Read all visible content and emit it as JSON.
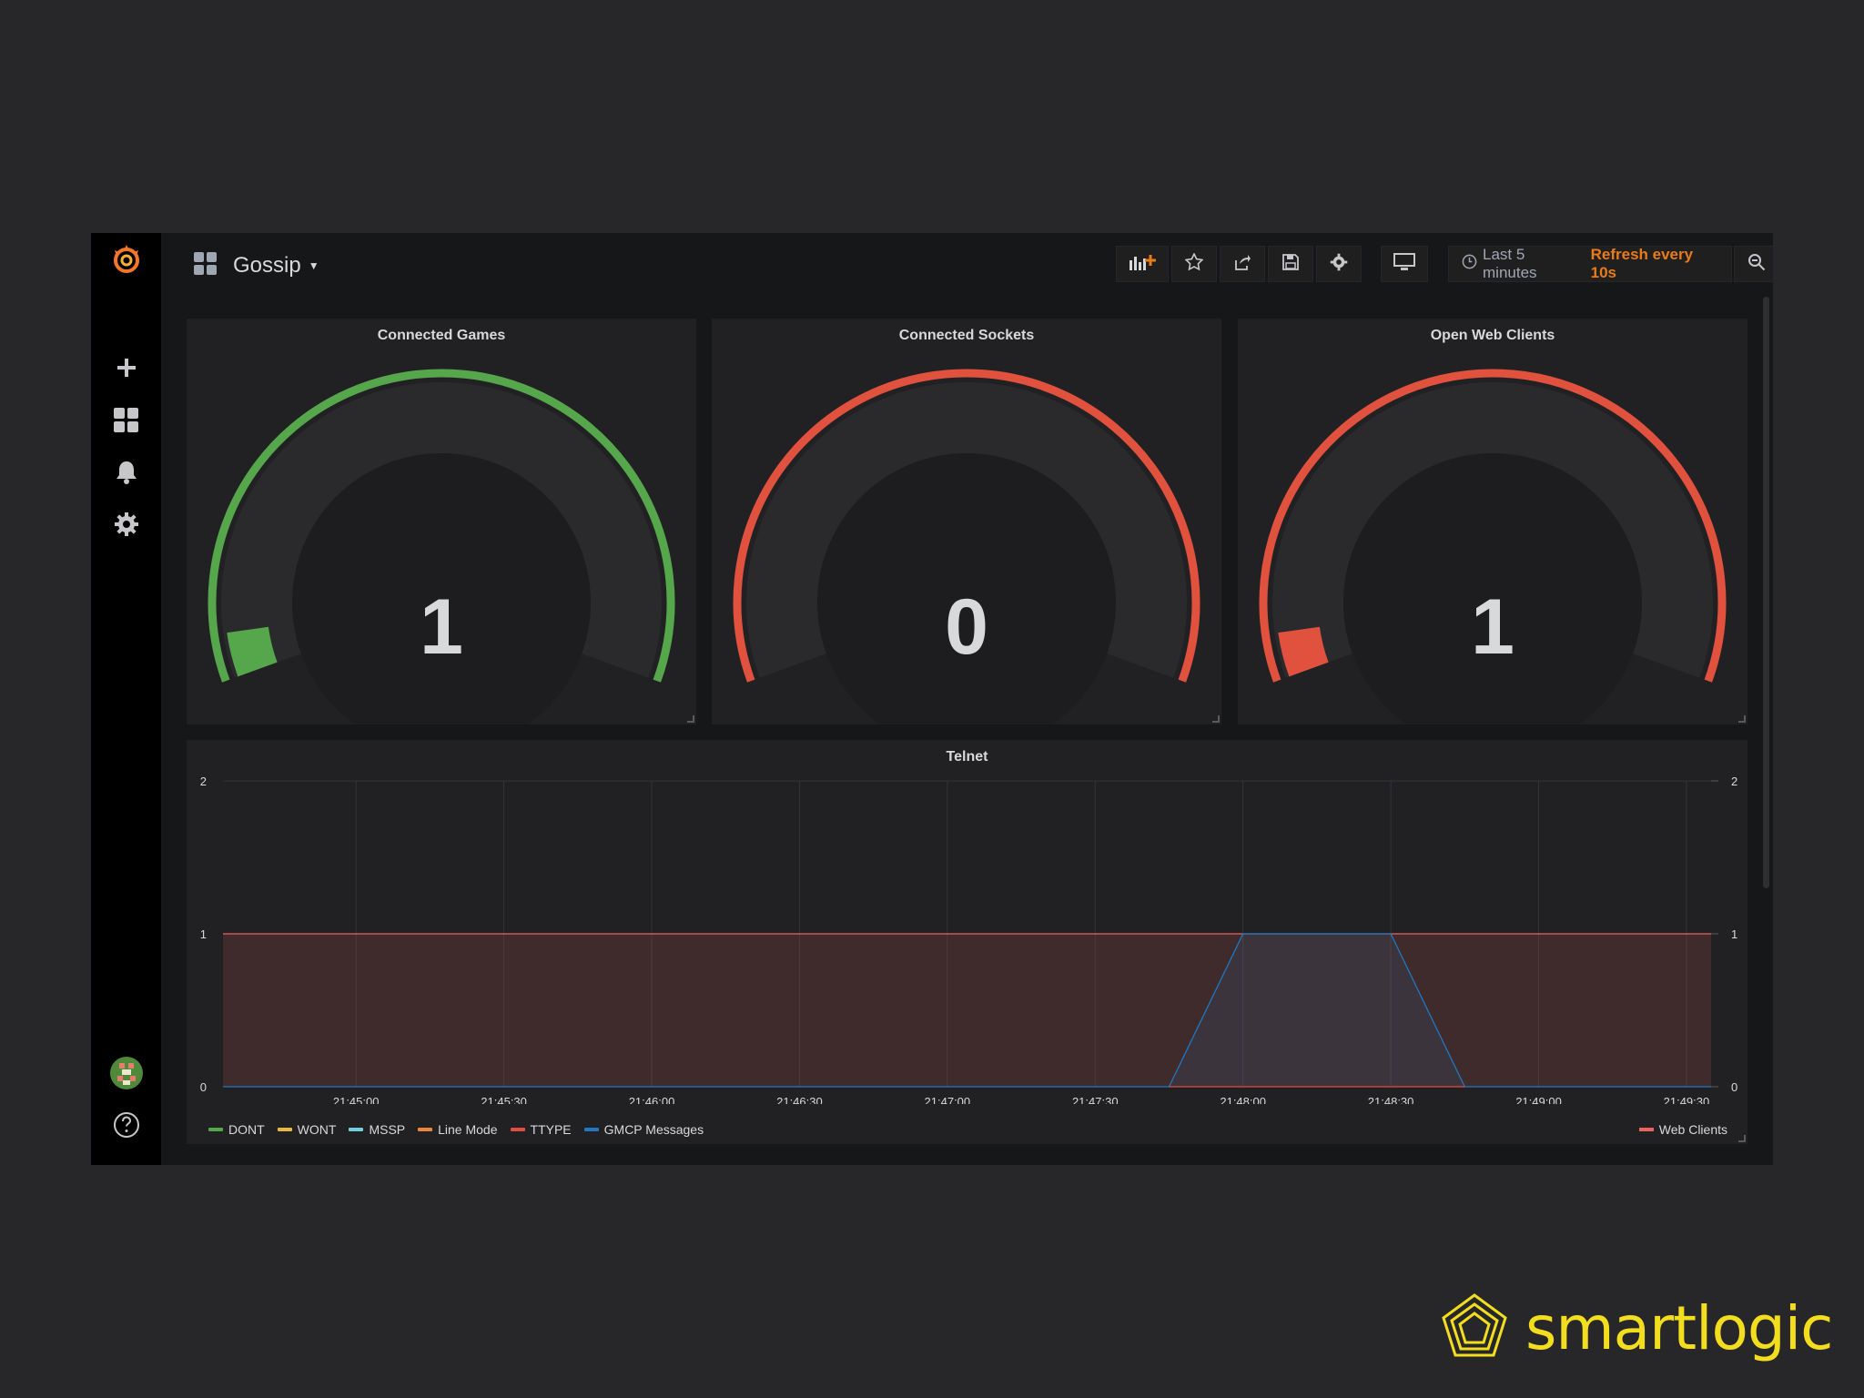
{
  "dashboard": {
    "title": "Gossip",
    "time_range": "Last 5 minutes",
    "refresh": "Refresh every 10s"
  },
  "toolbar": {
    "icons": [
      "add-panel-icon",
      "star-icon",
      "share-icon",
      "save-icon",
      "gear-icon",
      "monitor-icon",
      "clock-icon",
      "zoom-out-icon",
      "refresh-icon"
    ]
  },
  "sidenav": {
    "icons": [
      "grafana-logo-icon",
      "plus-icon",
      "dashboards-icon",
      "bell-icon",
      "gear-icon",
      "avatar",
      "help-icon"
    ]
  },
  "gauges": [
    {
      "title": "Connected Games",
      "value": "1",
      "color": "#56a64b"
    },
    {
      "title": "Connected Sockets",
      "value": "0",
      "color": "#e0513e"
    },
    {
      "title": "Open Web Clients",
      "value": "1",
      "color": "#e0513e"
    }
  ],
  "telnet": {
    "title": "Telnet",
    "legend_left": [
      {
        "name": "DONT",
        "color": "#56a64b"
      },
      {
        "name": "WONT",
        "color": "#e8b93a"
      },
      {
        "name": "MSSP",
        "color": "#6ed0e0"
      },
      {
        "name": "Line Mode",
        "color": "#ef843c"
      },
      {
        "name": "TTYPE",
        "color": "#e24d42"
      },
      {
        "name": "GMCP Messages",
        "color": "#1f78c1"
      }
    ],
    "legend_right": [
      {
        "name": "Web Clients",
        "color": "#ea6460"
      }
    ]
  },
  "brand": {
    "name": "smartlogic"
  },
  "chart_data": {
    "type": "line",
    "title": "Telnet",
    "x_tick_labels": [
      "21:45:00",
      "21:45:30",
      "21:46:00",
      "21:46:30",
      "21:47:00",
      "21:47:30",
      "21:48:00",
      "21:48:30",
      "21:49:00",
      "21:49:30"
    ],
    "y_tick_labels_left": [
      "0",
      "1",
      "2"
    ],
    "y_tick_labels_right": [
      "0",
      "1",
      "2"
    ],
    "ylim": [
      0,
      2
    ],
    "xlim": [
      "21:44:33",
      "21:49:35"
    ],
    "grid": true,
    "series": [
      {
        "name": "Web Clients",
        "axis": "right",
        "color": "#ea6460",
        "fill": true,
        "x": [
          "21:44:33",
          "21:49:35"
        ],
        "y": [
          1,
          1
        ]
      },
      {
        "name": "GMCP Messages",
        "axis": "left",
        "color": "#1f78c1",
        "fill": true,
        "x": [
          "21:44:33",
          "21:47:45",
          "21:48:00",
          "21:48:30",
          "21:48:45",
          "21:49:35"
        ],
        "y": [
          0,
          0,
          1,
          1,
          0,
          0
        ]
      },
      {
        "name": "TTYPE",
        "axis": "left",
        "color": "#e24d42",
        "fill": false,
        "x": [
          "21:47:45",
          "21:48:45"
        ],
        "y": [
          0,
          0
        ]
      }
    ],
    "legend_position": "bottom"
  }
}
